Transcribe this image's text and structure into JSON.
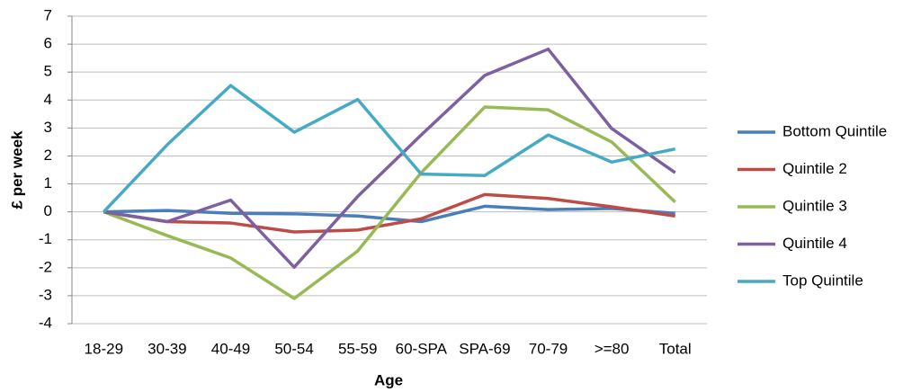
{
  "chart_data": {
    "type": "line",
    "x_label": "Age",
    "y_label": "£ per week",
    "categories": [
      "18-29",
      "30-39",
      "40-49",
      "50-54",
      "55-59",
      "60-SPA",
      "SPA-69",
      "70-79",
      ">=80",
      "Total"
    ],
    "series": [
      {
        "name": "Bottom Quintile",
        "color": "#4a7ebb",
        "values": [
          0,
          0.05,
          -0.05,
          -0.07,
          -0.15,
          -0.35,
          0.2,
          0.08,
          0.12,
          -0.05
        ]
      },
      {
        "name": "Quintile 2",
        "color": "#be4b48",
        "values": [
          0,
          -0.35,
          -0.4,
          -0.72,
          -0.65,
          -0.25,
          0.62,
          0.48,
          0.18,
          -0.15
        ]
      },
      {
        "name": "Quintile 3",
        "color": "#98b954",
        "values": [
          0,
          -0.85,
          -1.65,
          -3.1,
          -1.4,
          1.4,
          3.75,
          3.65,
          2.5,
          0.35
        ]
      },
      {
        "name": "Quintile 4",
        "color": "#7d60a0",
        "values": [
          0,
          -0.35,
          0.42,
          -1.98,
          0.55,
          2.75,
          4.88,
          5.82,
          2.98,
          1.4
        ]
      },
      {
        "name": "Top Quintile",
        "color": "#46aac5",
        "values": [
          0,
          2.4,
          4.52,
          2.85,
          4.02,
          1.35,
          1.3,
          2.75,
          1.78,
          2.25
        ]
      }
    ],
    "ylim": [
      -4,
      7
    ],
    "yticks": [
      -4,
      -3,
      -2,
      -1,
      0,
      1,
      2,
      3,
      4,
      5,
      6,
      7
    ],
    "grid": true,
    "legend": "right"
  }
}
